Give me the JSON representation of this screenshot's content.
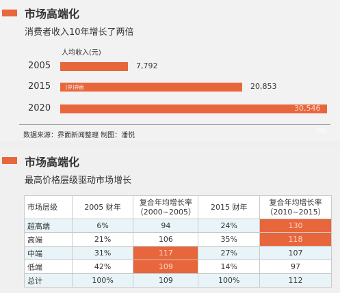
{
  "section1": {
    "title": "市场高端化",
    "subtitle": "消费者收入10年增长了两倍",
    "unit_label": "人均收入(元)",
    "source": "数据来源：界面新闻整理    制图：潘悦",
    "accent_color": "#e8663c"
  },
  "chart_data": {
    "type": "bar",
    "orientation": "horizontal",
    "categories": [
      "2005",
      "2015",
      "2020"
    ],
    "values": [
      7792,
      20853,
      30546
    ],
    "value_labels": [
      "7,792",
      "20,853",
      "30,546"
    ],
    "bar_color": "#e8663c"
  },
  "watermarks": {
    "bar": "[界]界面",
    "corner": "界面"
  },
  "section2": {
    "title": "市场高端化",
    "subtitle": "最高价格层级驱动市场增长",
    "headers": [
      "市场层级",
      "2005 财年",
      "复合年均增长率\n（2000~2005）",
      "2015 财年",
      "复合年均增长率\n（2010~2015）"
    ],
    "rows": [
      [
        "超高端",
        "6%",
        "94",
        "24%",
        "130"
      ],
      [
        "高端",
        "21%",
        "106",
        "35%",
        "118"
      ],
      [
        "中端",
        "31%",
        "117",
        "27%",
        "107"
      ],
      [
        "低端",
        "42%",
        "109",
        "14%",
        "97"
      ],
      [
        "总计",
        "100%",
        "109",
        "100%",
        "112"
      ]
    ],
    "highlighted_cells": [
      [
        0,
        4
      ],
      [
        1,
        4
      ],
      [
        2,
        2
      ],
      [
        3,
        2
      ]
    ],
    "highlight_color": "#e8663c"
  }
}
